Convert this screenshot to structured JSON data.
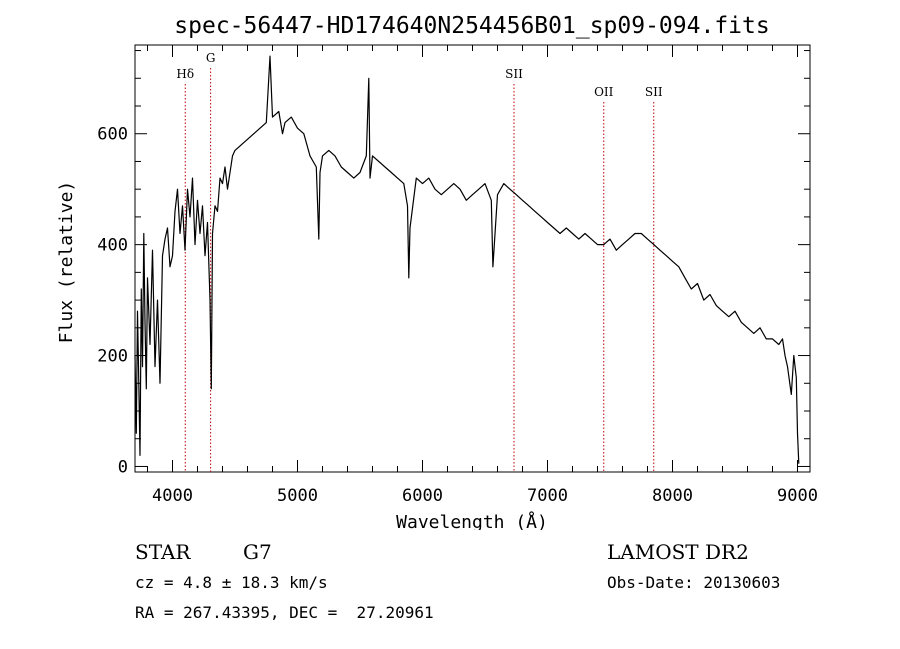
{
  "chart_data": {
    "type": "line",
    "title": "spec-56447-HD174640N254456B01_sp09-094.fits",
    "xlabel": "Wavelength (Å)",
    "ylabel": "Flux (relative)",
    "xlim": [
      3700,
      9100
    ],
    "ylim": [
      -10,
      760
    ],
    "xticks": [
      4000,
      5000,
      6000,
      7000,
      8000,
      9000
    ],
    "yticks": [
      0,
      200,
      400,
      600
    ],
    "grid": false,
    "line_color": "#000000",
    "marker_color": "#c00000",
    "spectral_lines": [
      {
        "name": "Hδ",
        "wavelength": 4102
      },
      {
        "name": "G",
        "wavelength": 4305
      },
      {
        "name": "SII",
        "wavelength": 6732
      },
      {
        "name": "OII",
        "wavelength": 7450
      },
      {
        "name": "SII",
        "wavelength": 7850
      }
    ],
    "series": [
      {
        "x": [
          3700,
          3710,
          3720,
          3730,
          3740,
          3750,
          3760,
          3770,
          3780,
          3790,
          3800,
          3820,
          3840,
          3860,
          3880,
          3900,
          3920,
          3940,
          3960,
          3980,
          4000,
          4020,
          4040,
          4060,
          4080,
          4100,
          4120,
          4140,
          4160,
          4180,
          4200,
          4220,
          4240,
          4260,
          4280,
          4300,
          4310,
          4320,
          4340,
          4360,
          4380,
          4400,
          4420,
          4440,
          4460,
          4480,
          4500,
          4550,
          4600,
          4650,
          4700,
          4750,
          4780,
          4800,
          4850,
          4880,
          4900,
          4950,
          5000,
          5050,
          5100,
          5150,
          5170,
          5180,
          5200,
          5250,
          5300,
          5350,
          5400,
          5450,
          5500,
          5550,
          5570,
          5580,
          5600,
          5650,
          5700,
          5750,
          5800,
          5850,
          5880,
          5890,
          5900,
          5950,
          6000,
          6050,
          6100,
          6150,
          6200,
          6250,
          6300,
          6350,
          6400,
          6450,
          6500,
          6550,
          6563,
          6600,
          6650,
          6700,
          6750,
          6800,
          6850,
          6900,
          6950,
          7000,
          7050,
          7100,
          7150,
          7200,
          7250,
          7300,
          7350,
          7400,
          7450,
          7500,
          7550,
          7600,
          7650,
          7700,
          7750,
          7800,
          7850,
          7900,
          7950,
          8000,
          8050,
          8100,
          8150,
          8200,
          8250,
          8300,
          8350,
          8400,
          8450,
          8500,
          8550,
          8600,
          8650,
          8700,
          8750,
          8800,
          8850,
          8880,
          8900,
          8920,
          8950,
          8970,
          8990,
          9000,
          9010
        ],
        "y": [
          200,
          60,
          280,
          150,
          20,
          320,
          180,
          420,
          260,
          140,
          340,
          220,
          390,
          180,
          300,
          150,
          380,
          410,
          430,
          360,
          380,
          460,
          500,
          420,
          470,
          390,
          500,
          450,
          520,
          400,
          480,
          420,
          470,
          380,
          440,
          300,
          140,
          420,
          470,
          460,
          520,
          510,
          540,
          500,
          530,
          560,
          570,
          580,
          590,
          600,
          610,
          620,
          740,
          630,
          640,
          600,
          620,
          630,
          610,
          600,
          560,
          540,
          410,
          530,
          560,
          570,
          560,
          540,
          530,
          520,
          530,
          560,
          700,
          520,
          560,
          550,
          540,
          530,
          520,
          510,
          470,
          340,
          430,
          520,
          510,
          520,
          500,
          490,
          500,
          510,
          500,
          480,
          490,
          500,
          510,
          480,
          360,
          490,
          510,
          500,
          490,
          480,
          470,
          460,
          450,
          440,
          430,
          420,
          430,
          420,
          410,
          420,
          410,
          400,
          400,
          410,
          390,
          400,
          410,
          420,
          420,
          410,
          400,
          390,
          380,
          370,
          360,
          340,
          320,
          330,
          300,
          310,
          290,
          280,
          270,
          280,
          260,
          250,
          240,
          250,
          230,
          230,
          220,
          230,
          200,
          180,
          130,
          200,
          160,
          60,
          5
        ]
      }
    ]
  },
  "footer": {
    "object_class": "STAR",
    "subclass": "G7",
    "survey": "LAMOST DR2",
    "redshift": "cz = 4.8 ± 18.3 km/s",
    "obs_date": "Obs-Date: 20130603",
    "coords": "RA = 267.43395, DEC =  27.20961"
  }
}
